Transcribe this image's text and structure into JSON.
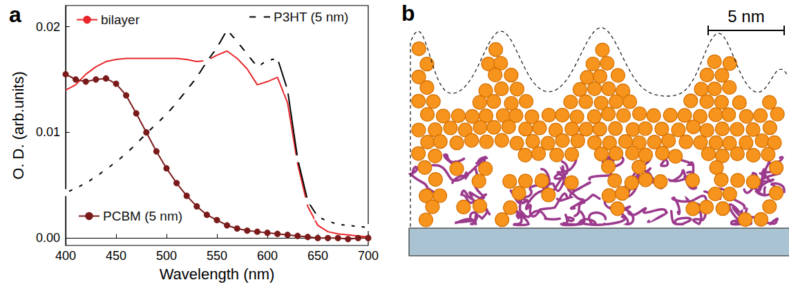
{
  "chart_data": {
    "type": "line",
    "title": "a",
    "x_label": "Wavelength (nm)",
    "y_label": "O. D. (arb.units)",
    "x": [
      400,
      410,
      420,
      430,
      440,
      450,
      460,
      470,
      480,
      490,
      500,
      510,
      520,
      530,
      540,
      550,
      560,
      570,
      580,
      590,
      600,
      610,
      620,
      630,
      640,
      650,
      660,
      670,
      680,
      690,
      700
    ],
    "series": [
      {
        "name": "bilayer",
        "color": "#e8262a",
        "marker": "none",
        "line_style": "solid",
        "values": [
          0.014,
          0.0145,
          0.0155,
          0.0162,
          0.0167,
          0.0169,
          0.017,
          0.017,
          0.017,
          0.017,
          0.017,
          0.017,
          0.0169,
          0.0167,
          0.0168,
          0.0173,
          0.0177,
          0.017,
          0.016,
          0.0145,
          0.0148,
          0.0152,
          0.0128,
          0.007,
          0.003,
          0.0012,
          0.0006,
          0.0004,
          0.0003,
          0.0002,
          0.0001
        ]
      },
      {
        "name": "P3HT (5 nm)",
        "color": "#000000",
        "marker": "open_square",
        "line_style": "solid",
        "values": [
          0.0043,
          0.0047,
          0.0052,
          0.0058,
          0.0065,
          0.0072,
          0.008,
          0.0089,
          0.0099,
          0.0108,
          0.0117,
          0.0128,
          0.014,
          0.0152,
          0.0167,
          0.018,
          0.0197,
          0.0186,
          0.0174,
          0.0162,
          0.0168,
          0.017,
          0.014,
          0.0075,
          0.0035,
          0.002,
          0.0016,
          0.0013,
          0.0012,
          0.0011,
          0.001
        ]
      },
      {
        "name": "PCBM (5 nm)",
        "color": "#7a1a1a",
        "marker": "circle",
        "line_style": "solid",
        "values": [
          0.0155,
          0.015,
          0.0148,
          0.015,
          0.0151,
          0.0146,
          0.0135,
          0.0118,
          0.01,
          0.0082,
          0.0066,
          0.0052,
          0.004,
          0.003,
          0.0022,
          0.0017,
          0.0012,
          0.0009,
          0.0007,
          0.0006,
          0.0005,
          0.0004,
          0.0003,
          0.0002,
          0.0001,
          0.0,
          0.0,
          0.0,
          -0.0001,
          0.0,
          0.0
        ]
      }
    ],
    "xlim": [
      400,
      700
    ],
    "xticks": [
      400,
      450,
      500,
      550,
      600,
      650,
      700
    ],
    "ylim": [
      -0.0007,
      0.022
    ],
    "yticks": [
      {
        "value": 0,
        "label": "0.00"
      },
      {
        "value": 0.01,
        "label": "0.01"
      },
      {
        "value": 0.02,
        "label": "0.02"
      }
    ],
    "hline": 0,
    "grid": false,
    "legend": "inside"
  },
  "diagram": {
    "label": "b",
    "scale_bar": "5 nm"
  }
}
